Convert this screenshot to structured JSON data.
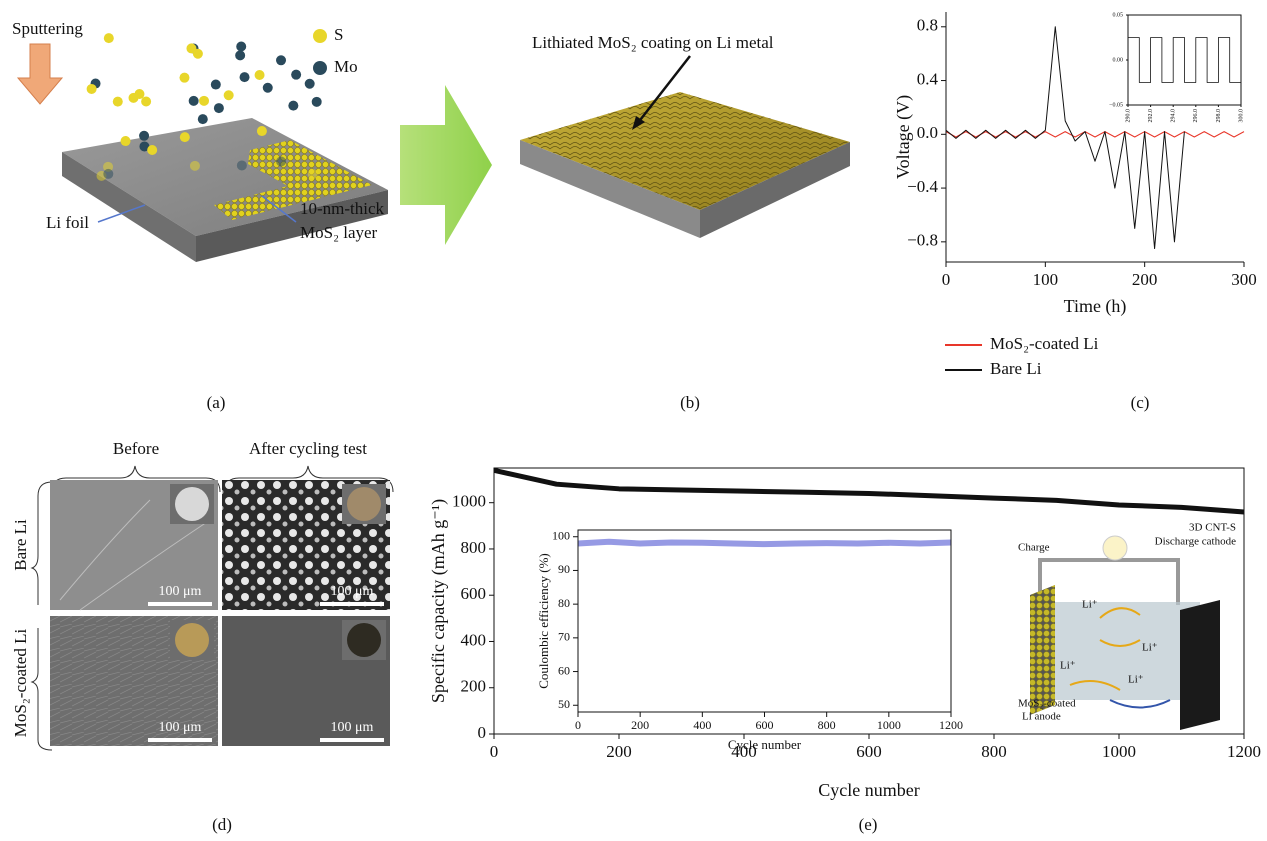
{
  "panel_labels": [
    "(a)",
    "(b)",
    "(c)",
    "(d)",
    "(e)"
  ],
  "panel_a": {
    "sputtering": "Sputtering",
    "legend": [
      "S",
      "Mo"
    ],
    "li_foil": "Li foil",
    "layer": [
      "10-nm-thick",
      "MoS₂ layer"
    ]
  },
  "panel_b": {
    "coating": "Lithiated MoS₂ coating on Li metal"
  },
  "panel_d": {
    "columns": [
      "Before",
      "After cycling test"
    ],
    "rows": [
      "Bare Li",
      "MoS₂-coated Li"
    ],
    "scale_bars": [
      "100 μm",
      "100 μm",
      "100 μm",
      "100 μm"
    ]
  },
  "panel_e_schematic": {
    "charge": "Charge",
    "cathode": [
      "3D CNT-S",
      "Discharge cathode"
    ],
    "ions": [
      "Li⁺",
      "Li⁺",
      "Li⁺",
      "Li⁺"
    ],
    "anode": [
      "MoS₂-coated",
      "Li anode"
    ]
  },
  "chart_data": [
    {
      "type": "line",
      "xlabel": "Time (h)",
      "ylabel": "Voltage (V)",
      "x": [
        0,
        10,
        20,
        30,
        40,
        50,
        60,
        70,
        80,
        90,
        100,
        110,
        120,
        130,
        140,
        150,
        160,
        170,
        180,
        190,
        200,
        210,
        220,
        230,
        240,
        250,
        260,
        270,
        280,
        290,
        300
      ],
      "series": [
        {
          "name": "MoS₂-coated Li",
          "color": "#e8362a",
          "values": [
            0.02,
            -0.02,
            0.02,
            -0.02,
            0.02,
            -0.02,
            0.02,
            -0.02,
            0.02,
            -0.02,
            0.02,
            -0.02,
            0.02,
            -0.02,
            0.02,
            -0.02,
            0.02,
            -0.02,
            0.02,
            -0.02,
            0.02,
            -0.02,
            0.02,
            -0.02,
            0.02,
            -0.02,
            0.02,
            -0.02,
            0.02,
            -0.02,
            0.02
          ]
        },
        {
          "name": "Bare Li",
          "color": "#111111",
          "values": [
            0.03,
            -0.03,
            0.03,
            -0.03,
            0.03,
            -0.03,
            0.03,
            -0.03,
            0.03,
            -0.03,
            0.03,
            0.8,
            0.1,
            -0.05,
            0.02,
            -0.2,
            0.02,
            -0.4,
            0.02,
            -0.7,
            0.02,
            -0.85,
            0.02,
            -0.8,
            0.02,
            null,
            null,
            null,
            null,
            null,
            null
          ]
        }
      ],
      "xlim": [
        0,
        300
      ],
      "ylim": [
        -0.95,
        0.91
      ],
      "xticks": [
        0,
        100,
        200,
        300
      ],
      "yticks": [
        0.8,
        0.4,
        {
          "value": 0,
          "label": "0.0"
        },
        {
          "value": -0.4,
          "label": "−0.4"
        },
        {
          "value": -0.8,
          "label": "−0.8"
        }
      ]
    },
    {
      "type": "line",
      "step": true,
      "x": [
        290,
        291,
        292,
        293,
        294,
        295,
        296,
        297,
        298,
        299,
        300
      ],
      "series": [
        {
          "color": "#111111",
          "values": [
            0.025,
            -0.025,
            0.025,
            -0.025,
            0.025,
            -0.025,
            0.025,
            -0.025,
            0.025,
            -0.025,
            0.025
          ]
        }
      ],
      "xlim": [
        290,
        300
      ],
      "ylim": [
        -0.05,
        0.05
      ],
      "xticks": [
        {
          "value": 290,
          "label": "290.0"
        },
        {
          "value": 292,
          "label": "292.0"
        },
        {
          "value": 294,
          "label": "294.0"
        },
        {
          "value": 296,
          "label": "296.0"
        },
        {
          "value": 298,
          "label": "298.0"
        },
        {
          "value": 300,
          "label": "300.0"
        }
      ],
      "yticks": [
        0.05,
        {
          "value": 0,
          "label": "0.00"
        },
        {
          "value": -0.05,
          "label": "−0.05"
        }
      ]
    },
    {
      "type": "line",
      "xlabel": "Cycle number",
      "ylabel": "Specific capacity (mAh g⁻¹)",
      "x": [
        0,
        100,
        200,
        300,
        400,
        500,
        600,
        700,
        800,
        900,
        1000,
        1100,
        1200
      ],
      "series": [
        {
          "color": "#111111",
          "values": [
            1140,
            1080,
            1060,
            1055,
            1050,
            1045,
            1040,
            1030,
            1020,
            1010,
            990,
            980,
            960
          ]
        }
      ],
      "xlim": [
        0,
        1200
      ],
      "ylim": [
        0,
        1150
      ],
      "xticks": [
        0,
        200,
        400,
        600,
        800,
        1000,
        1200
      ],
      "yticks": [
        0,
        200,
        400,
        600,
        800,
        1000
      ]
    },
    {
      "type": "line",
      "xlabel": "Cycle number",
      "ylabel": "Coulombic efficiency (%)",
      "x": [
        0,
        100,
        200,
        300,
        400,
        500,
        600,
        700,
        800,
        900,
        1000,
        1100,
        1200
      ],
      "series": [
        {
          "color": "#6a6fd8",
          "values": [
            98,
            98.5,
            98,
            98.3,
            98.2,
            98,
            97.8,
            98,
            98.1,
            98,
            98.2,
            98,
            98.3
          ]
        }
      ],
      "xlim": [
        0,
        1200
      ],
      "ylim": [
        48,
        102
      ],
      "xticks": [
        0,
        200,
        400,
        600,
        800,
        1000,
        1200
      ],
      "yticks": [
        50,
        60,
        70,
        80,
        90,
        100
      ]
    }
  ]
}
